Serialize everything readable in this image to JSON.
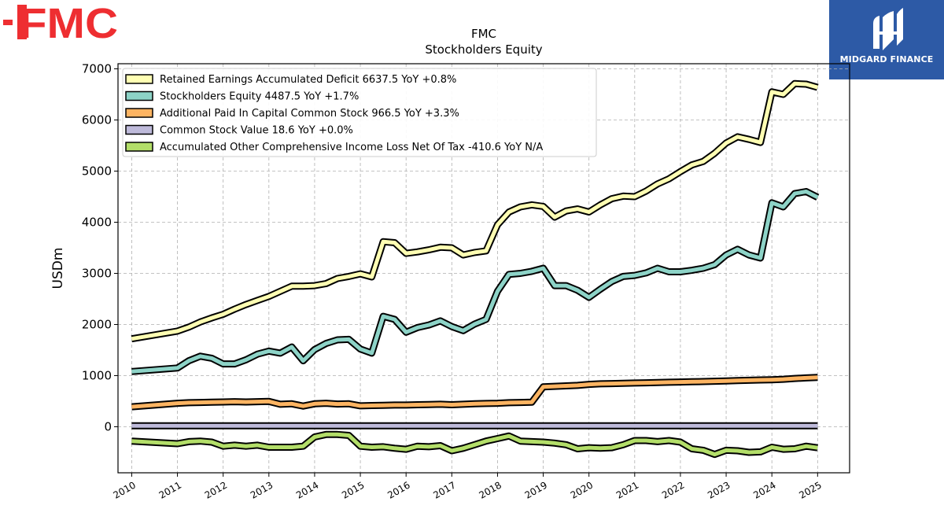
{
  "branding": {
    "company_logo_text": "FMC",
    "company_logo_color": "#ee2e31",
    "partner_name": "MIDGARD FINANCE",
    "partner_bg_color": "#2d5aa6"
  },
  "chart_data": {
    "type": "line",
    "title": "FMC",
    "subtitle": "Stockholders  Equity",
    "xlabel": "",
    "ylabel": "USDm",
    "xlim": [
      2009.7,
      2025.7
    ],
    "ylim": [
      -900,
      7100
    ],
    "yticks": [
      0,
      1000,
      2000,
      3000,
      4000,
      5000,
      6000,
      7000
    ],
    "ytick_labels": [
      "0",
      "1000",
      "2000",
      "3000",
      "4000",
      "5000",
      "6000",
      "7000"
    ],
    "xticks": [
      2010,
      2011,
      2012,
      2013,
      2014,
      2015,
      2016,
      2017,
      2018,
      2019,
      2020,
      2021,
      2022,
      2023,
      2024,
      2025
    ],
    "xtick_labels": [
      "2010",
      "2011",
      "2012",
      "2013",
      "2014",
      "2015",
      "2016",
      "2017",
      "2018",
      "2019",
      "2020",
      "2021",
      "2022",
      "2023",
      "2024",
      "2025"
    ],
    "grid": true,
    "legend_position": "top-left",
    "series": [
      {
        "name": "Retained Earnings Accumulated Deficit",
        "legend_label": "Retained Earnings Accumulated Deficit  6637.5 YoY +0.8%",
        "color": "#ffffb3",
        "x": [
          2010.0,
          2011.0,
          2011.25,
          2011.5,
          2011.75,
          2012.0,
          2012.25,
          2012.5,
          2012.75,
          2013.0,
          2013.25,
          2013.5,
          2013.75,
          2014.0,
          2014.25,
          2014.5,
          2014.75,
          2015.0,
          2015.25,
          2015.5,
          2015.75,
          2016.0,
          2016.25,
          2016.5,
          2016.75,
          2017.0,
          2017.25,
          2017.5,
          2017.75,
          2018.0,
          2018.25,
          2018.5,
          2018.75,
          2019.0,
          2019.25,
          2019.5,
          2019.75,
          2020.0,
          2020.25,
          2020.5,
          2020.75,
          2021.0,
          2021.25,
          2021.5,
          2021.75,
          2022.0,
          2022.25,
          2022.5,
          2022.75,
          2023.0,
          2023.25,
          2023.5,
          2023.75,
          2024.0,
          2024.25,
          2024.5,
          2024.75,
          2025.0
        ],
        "y": [
          1720,
          1870,
          1950,
          2050,
          2130,
          2200,
          2300,
          2390,
          2470,
          2550,
          2650,
          2750,
          2750,
          2760,
          2800,
          2900,
          2940,
          2990,
          2930,
          3620,
          3600,
          3390,
          3420,
          3460,
          3510,
          3500,
          3360,
          3410,
          3440,
          3950,
          4200,
          4300,
          4340,
          4310,
          4100,
          4220,
          4260,
          4200,
          4340,
          4460,
          4510,
          4500,
          4610,
          4750,
          4850,
          4990,
          5120,
          5190,
          5350,
          5550,
          5670,
          5620,
          5560,
          6550,
          6500,
          6710,
          6700,
          6637.5
        ]
      },
      {
        "name": "Stockholders Equity",
        "legend_label": "Stockholders Equity  4487.5 YoY +1.7%",
        "color": "#8dd3c7",
        "x": [
          2010.0,
          2011.0,
          2011.25,
          2011.5,
          2011.75,
          2012.0,
          2012.25,
          2012.5,
          2012.75,
          2013.0,
          2013.25,
          2013.5,
          2013.75,
          2014.0,
          2014.25,
          2014.5,
          2014.75,
          2015.0,
          2015.25,
          2015.5,
          2015.75,
          2016.0,
          2016.25,
          2016.5,
          2016.75,
          2017.0,
          2017.25,
          2017.5,
          2017.75,
          2018.0,
          2018.25,
          2018.5,
          2018.75,
          2019.0,
          2019.25,
          2019.5,
          2019.75,
          2020.0,
          2020.25,
          2020.5,
          2020.75,
          2021.0,
          2021.25,
          2021.5,
          2021.75,
          2022.0,
          2022.25,
          2022.5,
          2022.75,
          2023.0,
          2023.25,
          2023.5,
          2023.75,
          2024.0,
          2024.25,
          2024.5,
          2024.75,
          2025.0
        ],
        "y": [
          1080,
          1150,
          1290,
          1380,
          1340,
          1230,
          1230,
          1310,
          1420,
          1480,
          1440,
          1560,
          1290,
          1510,
          1630,
          1700,
          1710,
          1520,
          1440,
          2160,
          2100,
          1850,
          1940,
          1990,
          2070,
          1960,
          1880,
          2010,
          2100,
          2650,
          2980,
          3000,
          3040,
          3100,
          2760,
          2760,
          2670,
          2530,
          2690,
          2840,
          2940,
          2960,
          3010,
          3100,
          3030,
          3030,
          3060,
          3100,
          3170,
          3360,
          3470,
          3360,
          3300,
          4380,
          4300,
          4560,
          4600,
          4487.5
        ]
      },
      {
        "name": "Additional Paid In Capital Common Stock",
        "legend_label": "Additional Paid In Capital Common Stock  966.5 YoY +3.3%",
        "color": "#fdb462",
        "x": [
          2010.0,
          2011.0,
          2011.25,
          2011.5,
          2011.75,
          2012.0,
          2012.25,
          2012.5,
          2012.75,
          2013.0,
          2013.25,
          2013.5,
          2013.75,
          2014.0,
          2014.25,
          2014.5,
          2014.75,
          2015.0,
          2015.25,
          2015.5,
          2015.75,
          2016.0,
          2016.25,
          2016.5,
          2016.75,
          2017.0,
          2017.25,
          2017.5,
          2017.75,
          2018.0,
          2018.25,
          2018.5,
          2018.75,
          2019.0,
          2019.25,
          2019.5,
          2019.75,
          2020.0,
          2020.25,
          2020.5,
          2020.75,
          2021.0,
          2021.25,
          2021.5,
          2021.75,
          2022.0,
          2022.25,
          2022.5,
          2022.75,
          2023.0,
          2023.25,
          2023.5,
          2023.75,
          2024.0,
          2024.25,
          2024.5,
          2024.75,
          2025.0
        ],
        "y": [
          390,
          460,
          470,
          475,
          480,
          485,
          490,
          485,
          490,
          495,
          440,
          450,
          405,
          450,
          460,
          445,
          450,
          410,
          415,
          420,
          425,
          425,
          430,
          435,
          440,
          430,
          440,
          450,
          455,
          460,
          470,
          475,
          480,
          780,
          790,
          800,
          810,
          830,
          840,
          845,
          850,
          855,
          860,
          865,
          870,
          875,
          880,
          885,
          890,
          895,
          905,
          910,
          915,
          920,
          930,
          945,
          955,
          966.5
        ]
      },
      {
        "name": "Common Stock Value",
        "legend_label": "Common Stock Value  18.6 YoY +0.0%",
        "color": "#bebada",
        "x": [
          2010.0,
          2012.0,
          2013.0,
          2025.0
        ],
        "y": [
          18.6,
          18.6,
          18.6,
          18.6
        ]
      },
      {
        "name": "Accumulated Other Comprehensive Income Loss Net Of Tax",
        "legend_label": "Accumulated Other Comprehensive Income Loss Net Of Tax  -410.6 YoY N/A",
        "color": "#b3de69",
        "x": [
          2010.0,
          2011.0,
          2011.25,
          2011.5,
          2011.75,
          2012.0,
          2012.25,
          2012.5,
          2012.75,
          2013.0,
          2013.25,
          2013.5,
          2013.75,
          2014.0,
          2014.25,
          2014.5,
          2014.75,
          2015.0,
          2015.25,
          2015.5,
          2015.75,
          2016.0,
          2016.25,
          2016.5,
          2016.75,
          2017.0,
          2017.25,
          2017.5,
          2017.75,
          2018.0,
          2018.25,
          2018.5,
          2018.75,
          2019.0,
          2019.25,
          2019.5,
          2019.75,
          2020.0,
          2020.25,
          2020.5,
          2020.75,
          2021.0,
          2021.25,
          2021.5,
          2021.75,
          2022.0,
          2022.25,
          2022.5,
          2022.75,
          2023.0,
          2023.25,
          2023.5,
          2023.75,
          2024.0,
          2024.25,
          2024.5,
          2024.75,
          2025.0
        ],
        "y": [
          -280,
          -330,
          -290,
          -280,
          -300,
          -380,
          -360,
          -380,
          -360,
          -400,
          -400,
          -400,
          -380,
          -200,
          -150,
          -150,
          -170,
          -380,
          -400,
          -390,
          -420,
          -440,
          -380,
          -390,
          -370,
          -470,
          -420,
          -350,
          -280,
          -230,
          -180,
          -280,
          -290,
          -300,
          -320,
          -350,
          -430,
          -410,
          -420,
          -410,
          -350,
          -270,
          -270,
          -290,
          -270,
          -300,
          -430,
          -460,
          -540,
          -460,
          -470,
          -500,
          -490,
          -400,
          -440,
          -430,
          -380,
          -410.6
        ]
      }
    ]
  }
}
